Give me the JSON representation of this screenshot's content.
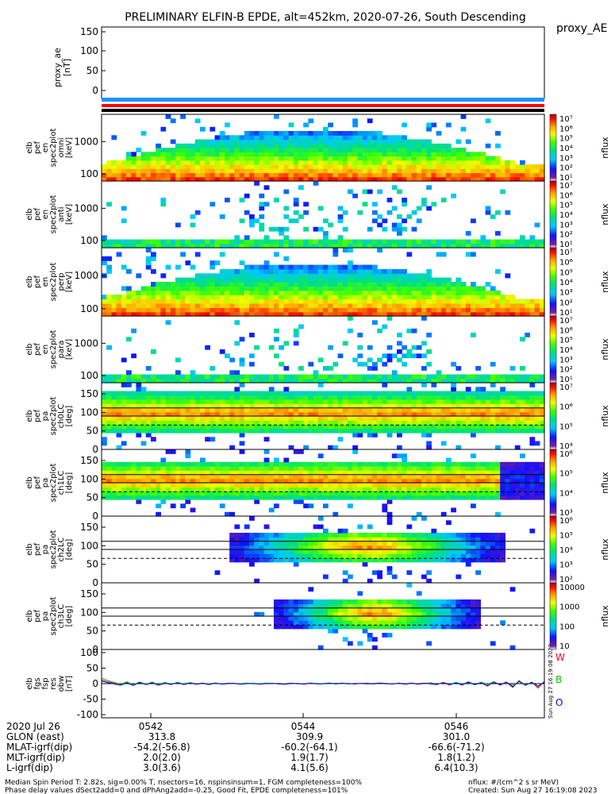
{
  "figure": {
    "title": "PRELIMINARY ELFIN-B EPDE, alt=452km, 2020-07-26, South Descending",
    "proxy_label": "proxy_AE",
    "side_stamp": "Sun Aug 27 16:19:08 2023",
    "cb_unit": "nflux"
  },
  "chart_data": [
    {
      "panel": "proxy_ae",
      "type": "line",
      "ylabel": [
        "proxy_ae",
        "[nT]"
      ],
      "ylim": [
        -15,
        155
      ],
      "yticks": [
        "150",
        "100",
        "50",
        "0"
      ],
      "series": []
    },
    {
      "panel": "spec_omni",
      "type": "heatmap",
      "yscale": "log",
      "ylabel": [
        "elb",
        "pef",
        "en",
        "spec2plot",
        "omni",
        "[keV]"
      ],
      "ylim": [
        60,
        7000
      ],
      "yticks": [
        "1000",
        "100"
      ],
      "zscale": "log",
      "zlim": [
        10,
        10000000
      ],
      "cbar_ticks": [
        "10⁷",
        "10⁶",
        "10⁵",
        "10⁴",
        "10³",
        "10²",
        "10¹"
      ]
    },
    {
      "panel": "spec_anti",
      "type": "heatmap",
      "yscale": "log",
      "ylabel": [
        "elb",
        "pef",
        "en",
        "spec2plot",
        "anti",
        "[keV]"
      ],
      "ylim": [
        60,
        7000
      ],
      "yticks": [
        "1000",
        "100"
      ],
      "zscale": "log",
      "zlim": [
        10,
        10000000
      ],
      "cbar_ticks": [
        "10⁷",
        "10⁶",
        "10⁵",
        "10⁴",
        "10³",
        "10²",
        "10¹"
      ]
    },
    {
      "panel": "spec_perp",
      "type": "heatmap",
      "yscale": "log",
      "ylabel": [
        "elb",
        "pef",
        "en",
        "spec2plot",
        "perp",
        "[keV]"
      ],
      "ylim": [
        60,
        7000
      ],
      "yticks": [
        "1000",
        "100"
      ],
      "zscale": "log",
      "zlim": [
        10,
        10000000
      ],
      "cbar_ticks": [
        "10⁷",
        "10⁶",
        "10⁵",
        "10⁴",
        "10³",
        "10²",
        "10¹"
      ]
    },
    {
      "panel": "spec_para",
      "type": "heatmap",
      "yscale": "log",
      "ylabel": [
        "elb",
        "pef",
        "en",
        "spec2plot",
        "para",
        "[keV]"
      ],
      "ylim": [
        60,
        7000
      ],
      "yticks": [
        "1000",
        "100"
      ],
      "zscale": "log",
      "zlim": [
        10,
        10000000
      ],
      "cbar_ticks": [
        "10⁷",
        "10⁶",
        "10⁵",
        "10⁴",
        "10³",
        "10²",
        "10¹"
      ]
    },
    {
      "panel": "pa_ch0",
      "type": "heatmap",
      "ylabel": [
        "elb",
        "pef",
        "pa",
        "spec2plot",
        "ch0LC",
        "[deg]"
      ],
      "ylim": [
        0,
        180
      ],
      "yticks": [
        "150",
        "100",
        "50",
        "0"
      ],
      "zscale": "log",
      "zlim": [
        3000,
        10000000
      ],
      "cbar_ticks": [
        "10⁷",
        "10⁶",
        "10⁵",
        "10⁴"
      ]
    },
    {
      "panel": "pa_ch1",
      "type": "heatmap",
      "ylabel": [
        "elb",
        "pef",
        "pa",
        "spec2plot",
        "ch1LC",
        "[deg]"
      ],
      "ylim": [
        0,
        180
      ],
      "yticks": [
        "150",
        "100",
        "50",
        "0"
      ],
      "zscale": "log",
      "zlim": [
        1000,
        3000000
      ],
      "cbar_ticks": [
        "10⁶",
        "10⁵",
        "10⁴",
        "10³"
      ]
    },
    {
      "panel": "pa_ch2",
      "type": "heatmap",
      "ylabel": [
        "elb",
        "pef",
        "pa",
        "spec2plot",
        "ch2LC",
        "[deg]"
      ],
      "ylim": [
        0,
        180
      ],
      "yticks": [
        "150",
        "100",
        "50",
        "0"
      ],
      "zscale": "log",
      "zlim": [
        100,
        1000000
      ],
      "cbar_ticks": [
        "10⁶",
        "10⁵",
        "10⁴",
        "10³",
        "10²"
      ]
    },
    {
      "panel": "pa_ch3",
      "type": "heatmap",
      "ylabel": [
        "elb",
        "pef",
        "pa",
        "spec2plot",
        "ch3LC",
        "[deg]"
      ],
      "ylim": [
        0,
        180
      ],
      "yticks": [
        "150",
        "100",
        "50",
        "0"
      ],
      "zscale": "log",
      "zlim": [
        10,
        10000
      ],
      "cbar_ticks": [
        "10000",
        "1000",
        "100",
        "10"
      ]
    },
    {
      "panel": "fgs_res",
      "type": "line",
      "ylabel": [
        "elb",
        "fgs",
        "fsp",
        "res",
        "obw",
        "[nT]"
      ],
      "ylim": [
        -110,
        110
      ],
      "yticks": [
        "100",
        "50",
        "0",
        "-50",
        "-100"
      ],
      "series": [
        {
          "name": "W",
          "color": "#ff0000",
          "values": [
            12,
            6,
            2,
            -3,
            4,
            -5,
            3,
            -2,
            5,
            -4,
            2,
            -3,
            4,
            -2,
            3,
            -1,
            2,
            -2,
            1,
            -1,
            2,
            0,
            -1,
            1,
            0,
            -1,
            2,
            0,
            1,
            -1,
            0,
            1,
            -2,
            1,
            0,
            -1,
            1,
            0,
            2,
            -1,
            1,
            0,
            -1,
            1,
            2,
            -1,
            0,
            1,
            -2,
            1,
            0,
            2,
            -1,
            -3,
            4,
            -2,
            3,
            -5,
            6,
            -4,
            3,
            -8,
            7,
            -5,
            4,
            -12,
            10,
            -6,
            5,
            -14,
            8
          ]
        },
        {
          "name": "B",
          "color": "#00cc00",
          "values": [
            18,
            10,
            4,
            -2,
            6,
            -3,
            5,
            -1,
            3,
            -2,
            4,
            -1,
            2,
            0,
            3,
            -2,
            1,
            0,
            2,
            -1,
            1,
            1,
            0,
            2,
            -1,
            0,
            1,
            1,
            -1,
            0,
            2,
            -1,
            0,
            1,
            1,
            0,
            -1,
            2,
            0,
            1,
            -1,
            0,
            2,
            0,
            1,
            1,
            -1,
            2,
            0,
            1,
            -1,
            0,
            3,
            -2,
            2,
            -3,
            4,
            -1,
            3,
            -4,
            5,
            -2,
            6,
            -3,
            4,
            -6,
            8,
            -4,
            3,
            -9,
            6
          ]
        },
        {
          "name": "O",
          "color": "#0000ff",
          "values": [
            8,
            3,
            -1,
            -5,
            2,
            -6,
            4,
            -3,
            2,
            -5,
            1,
            -2,
            3,
            -3,
            2,
            -2,
            1,
            -3,
            2,
            -2,
            0,
            1,
            -2,
            0,
            1,
            -2,
            0,
            1,
            -1,
            -2,
            1,
            0,
            -1,
            2,
            -1,
            0,
            2,
            -1,
            1,
            0,
            -1,
            1,
            0,
            -1,
            2,
            0,
            -1,
            1,
            -1,
            2,
            -2,
            1,
            0,
            -2,
            3,
            -4,
            2,
            -3,
            5,
            -2,
            2,
            -6,
            4,
            -3,
            5,
            -10,
            7,
            -5,
            4,
            -8,
            4
          ]
        }
      ]
    }
  ],
  "bottom_axis": {
    "date": "2020 Jul 26",
    "times": [
      "0542",
      "0544",
      "0546"
    ],
    "rows": [
      {
        "label": "GLON (east)",
        "vals": [
          "313.8",
          "309.9",
          "301.0"
        ]
      },
      {
        "label": "MLAT-igrf(dip)",
        "vals": [
          "-54.2(-56.8)",
          "-60.2(-64.1)",
          "-66.6(-71.2)"
        ]
      },
      {
        "label": "MLT-igrf(dip)",
        "vals": [
          "2.0(2.0)",
          "1.9(1.7)",
          "1.8(1.2)"
        ]
      },
      {
        "label": "L-igrf(dip)",
        "vals": [
          "3.0(3.6)",
          "4.1(5.6)",
          "6.4(10.3)"
        ]
      }
    ]
  },
  "footer": {
    "line1": "Median Spin Period T: 2.82s, sig=0.00% T, nsectors=16, nspinsinsum=1, FGM completeness=100%",
    "line2": "Phase delay values dSect2add=0 and dPhAng2add=-0.25, Good Fit, EPDE completeness=101%",
    "right1": "nflux: #/(cm^2 s sr MeV)",
    "right2": "Created: Sun Aug 27 16:19:08 2023"
  }
}
